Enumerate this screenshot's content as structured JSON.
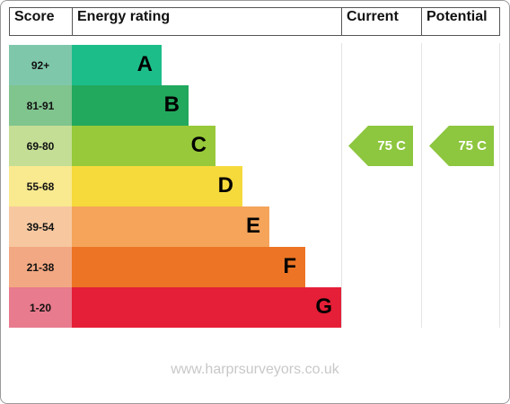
{
  "header": {
    "score": "Score",
    "energy_rating": "Energy rating",
    "current": "Current",
    "potential": "Potential"
  },
  "chart_data": {
    "type": "bar",
    "categories": [
      "A",
      "B",
      "C",
      "D",
      "E",
      "F",
      "G"
    ],
    "score_ranges": [
      "92+",
      "81-91",
      "69-80",
      "55-68",
      "39-54",
      "21-38",
      "1-20"
    ],
    "band_colors": [
      "#1dbd8a",
      "#22a95d",
      "#97c93a",
      "#f6da3c",
      "#f5a45a",
      "#ec7424",
      "#e41f37"
    ],
    "score_colors": [
      "#7fc7ab",
      "#80c48e",
      "#c4de95",
      "#f9e98f",
      "#f7c8a0",
      "#f2a882",
      "#e87b8d"
    ],
    "current": {
      "value": 75,
      "band": "C",
      "label": "75 C",
      "color": "#8dc63f"
    },
    "potential": {
      "value": 75,
      "band": "C",
      "label": "75 C",
      "color": "#8dc63f"
    }
  },
  "footer": {
    "text": "www.harprsurveyors.co.uk"
  }
}
